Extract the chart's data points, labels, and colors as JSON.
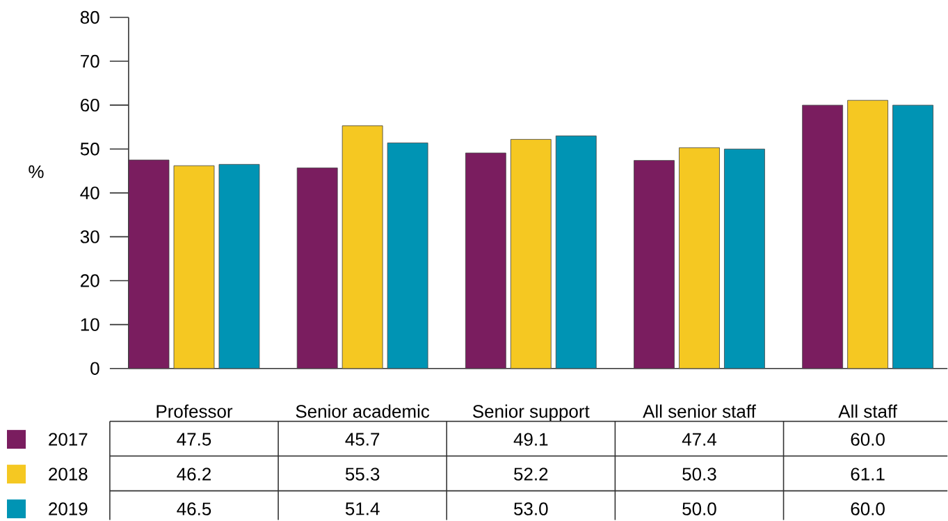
{
  "chart_data": {
    "type": "bar",
    "ylabel": "%",
    "categories": [
      "Professor",
      "Senior academic",
      "Senior support",
      "All senior staff",
      "All staff"
    ],
    "series": [
      {
        "name": "2017",
        "color": "#7a1d5f",
        "values": [
          47.5,
          45.7,
          49.1,
          47.4,
          60.0
        ],
        "value_labels": [
          "47.5",
          "45.7",
          "49.1",
          "47.4",
          "60.0"
        ]
      },
      {
        "name": "2018",
        "color": "#f5c822",
        "values": [
          46.2,
          55.3,
          52.2,
          50.3,
          61.1
        ],
        "value_labels": [
          "46.2",
          "55.3",
          "52.2",
          "50.3",
          "61.1"
        ]
      },
      {
        "name": "2019",
        "color": "#0094b4",
        "values": [
          46.5,
          51.4,
          53.0,
          50.0,
          60.0
        ],
        "value_labels": [
          "46.5",
          "51.4",
          "53.0",
          "50.0",
          "60.0"
        ]
      }
    ],
    "legend": "bottom left",
    "ylim": [
      0,
      80
    ],
    "yticks": [
      0,
      10,
      20,
      30,
      40,
      50,
      60,
      70,
      80
    ]
  }
}
